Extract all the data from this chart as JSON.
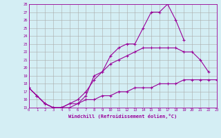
{
  "x": [
    0,
    1,
    2,
    3,
    4,
    5,
    6,
    7,
    8,
    9,
    10,
    11,
    12,
    13,
    14,
    15,
    16,
    17,
    18,
    19,
    20,
    21,
    22,
    23
  ],
  "line1": [
    17.5,
    16.5,
    15.5,
    15.0,
    15.0,
    15.0,
    15.5,
    16.5,
    19.0,
    19.5,
    21.5,
    22.5,
    23.0,
    23.0,
    25.0,
    27.0,
    27.0,
    28.0,
    26.0,
    23.5,
    null,
    null,
    null,
    null
  ],
  "line2": [
    17.5,
    16.5,
    15.5,
    15.0,
    15.0,
    15.5,
    16.0,
    17.0,
    18.5,
    19.5,
    20.5,
    21.0,
    21.5,
    22.0,
    22.5,
    22.5,
    22.5,
    22.5,
    22.5,
    22.0,
    22.0,
    21.0,
    19.5,
    null
  ],
  "line3": [
    17.5,
    16.5,
    15.5,
    15.0,
    15.0,
    15.5,
    15.5,
    16.0,
    16.0,
    16.5,
    16.5,
    17.0,
    17.0,
    17.5,
    17.5,
    17.5,
    18.0,
    18.0,
    18.0,
    18.5,
    18.5,
    18.5,
    18.5,
    18.5
  ],
  "xlabel": "Windchill (Refroidissement éolien,°C)",
  "ylim": [
    15,
    28
  ],
  "xlim": [
    0,
    23
  ],
  "yticks": [
    15,
    16,
    17,
    18,
    19,
    20,
    21,
    22,
    23,
    24,
    25,
    26,
    27,
    28
  ],
  "xticks": [
    0,
    1,
    2,
    3,
    4,
    5,
    6,
    7,
    8,
    9,
    10,
    11,
    12,
    13,
    14,
    15,
    16,
    17,
    18,
    19,
    20,
    21,
    22,
    23
  ],
  "line_color": "#990099",
  "bg_color": "#d4eef4",
  "grid_color": "#aaaaaa",
  "marker": "+",
  "markersize": 3,
  "linewidth": 0.8
}
